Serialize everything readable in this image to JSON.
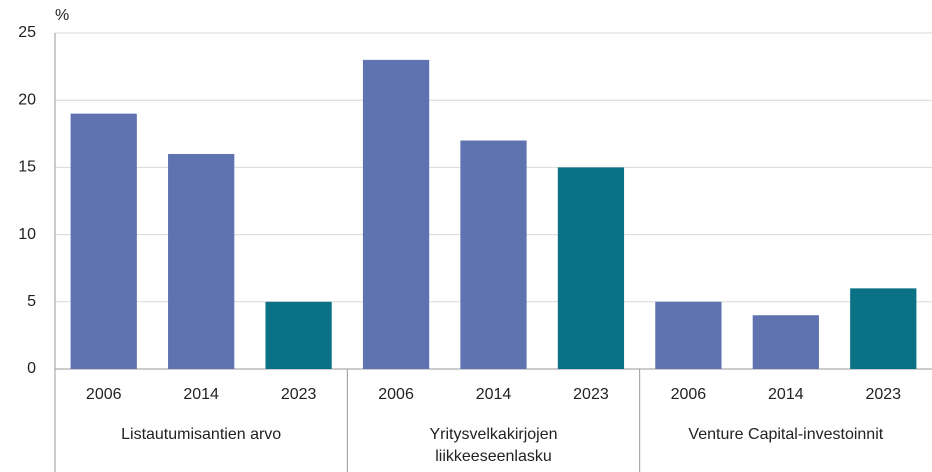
{
  "chart_data": {
    "type": "bar",
    "y_unit": "%",
    "groups": [
      {
        "name": "Listautumisantien arvo",
        "categories": [
          "2006",
          "2014",
          "2023"
        ],
        "values": [
          19,
          16,
          5
        ],
        "colors": [
          "#5f73b0",
          "#5f73b0",
          "#0b7285"
        ]
      },
      {
        "name": "Yritysvelkakirjojen\nliikkeeseenlasku",
        "categories": [
          "2006",
          "2014",
          "2023"
        ],
        "values": [
          23,
          17,
          15
        ],
        "colors": [
          "#5f73b0",
          "#5f73b0",
          "#0b7285"
        ]
      },
      {
        "name": "Venture Capital-investoinnit",
        "categories": [
          "2006",
          "2014",
          "2023"
        ],
        "values": [
          5,
          4,
          6
        ],
        "colors": [
          "#5f73b0",
          "#5f73b0",
          "#0b7285"
        ]
      }
    ],
    "ylim": [
      0,
      25
    ],
    "yticks": [
      0,
      5,
      10,
      15,
      20,
      25
    ],
    "grid": true
  }
}
